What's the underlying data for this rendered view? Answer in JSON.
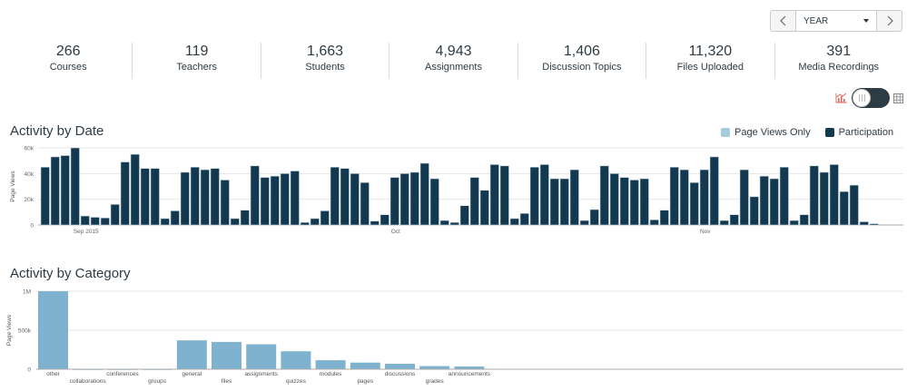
{
  "nav": {
    "prev_icon": "chevron-left-icon",
    "next_icon": "chevron-right-icon",
    "period_value": "YEAR"
  },
  "stats": [
    {
      "value": "266",
      "label": "Courses"
    },
    {
      "value": "119",
      "label": "Teachers"
    },
    {
      "value": "1,663",
      "label": "Students"
    },
    {
      "value": "4,943",
      "label": "Assignments"
    },
    {
      "value": "1,406",
      "label": "Discussion Topics"
    },
    {
      "value": "11,320",
      "label": "Files Uploaded"
    },
    {
      "value": "391",
      "label": "Media Recordings"
    }
  ],
  "view_toggle": {
    "left_icon": "chart-icon",
    "right_icon": "table-grid-icon",
    "state": "chart"
  },
  "colors": {
    "participation": "#12394f",
    "page_views": "#7fb2cf",
    "accent": "#e06a5f"
  },
  "chart_data": [
    {
      "type": "bar",
      "title": "Activity by Date",
      "ylabel": "Page Views",
      "xlabel": "",
      "ylim": [
        0,
        60000
      ],
      "yticks": [
        {
          "value": 0,
          "label": "0"
        },
        {
          "value": 20000,
          "label": "20k"
        },
        {
          "value": 40000,
          "label": "40k"
        },
        {
          "value": 60000,
          "label": "60k"
        }
      ],
      "xticks": [
        {
          "index": 4,
          "label": "Sep 2015"
        },
        {
          "index": 35,
          "label": "Oct"
        },
        {
          "index": 66,
          "label": "Nov"
        }
      ],
      "legend": [
        {
          "name": "Page Views Only",
          "color": "#a9ccdd"
        },
        {
          "name": "Participation",
          "color": "#12394f"
        }
      ],
      "legend_position": "top-right",
      "grid": true,
      "series": [
        {
          "name": "Participation",
          "values": [
            45000,
            53000,
            54000,
            60000,
            7000,
            6000,
            5500,
            16000,
            49000,
            55000,
            44000,
            44000,
            5000,
            11000,
            41000,
            45000,
            43000,
            44000,
            35000,
            5000,
            11500,
            46000,
            37000,
            38000,
            40000,
            42000,
            2000,
            5000,
            11000,
            45000,
            44000,
            40000,
            33000,
            3000,
            8000,
            37000,
            40000,
            41000,
            48000,
            36000,
            3500,
            2000,
            15000,
            37000,
            27000,
            47000,
            46000,
            5000,
            9000,
            45000,
            47000,
            36000,
            36000,
            43000,
            3500,
            12000,
            46000,
            40000,
            37000,
            35000,
            36000,
            4000,
            11500,
            45000,
            43000,
            33000,
            43000,
            53000,
            3500,
            8000,
            43000,
            22000,
            38000,
            36000,
            45000,
            3500,
            8000,
            46000,
            41000,
            47000,
            26000,
            31000,
            2500,
            1000
          ]
        }
      ]
    },
    {
      "type": "bar",
      "title": "Activity by Category",
      "ylabel": "Page Views",
      "xlabel": "",
      "ylim": [
        0,
        1000000
      ],
      "yticks": [
        {
          "value": 0,
          "label": "0"
        },
        {
          "value": 500000,
          "label": "500k"
        },
        {
          "value": 1000000,
          "label": "1M"
        }
      ],
      "grid": true,
      "categories": [
        "other",
        "collaborations",
        "conferences",
        "groups",
        "general",
        "files",
        "assignments",
        "quizzes",
        "modules",
        "pages",
        "discussions",
        "grades",
        "announcements"
      ],
      "series": [
        {
          "name": "Page Views",
          "values": [
            1000000,
            3000,
            3000,
            3000,
            370000,
            350000,
            320000,
            230000,
            115000,
            85000,
            70000,
            40000,
            35000
          ]
        }
      ]
    }
  ]
}
